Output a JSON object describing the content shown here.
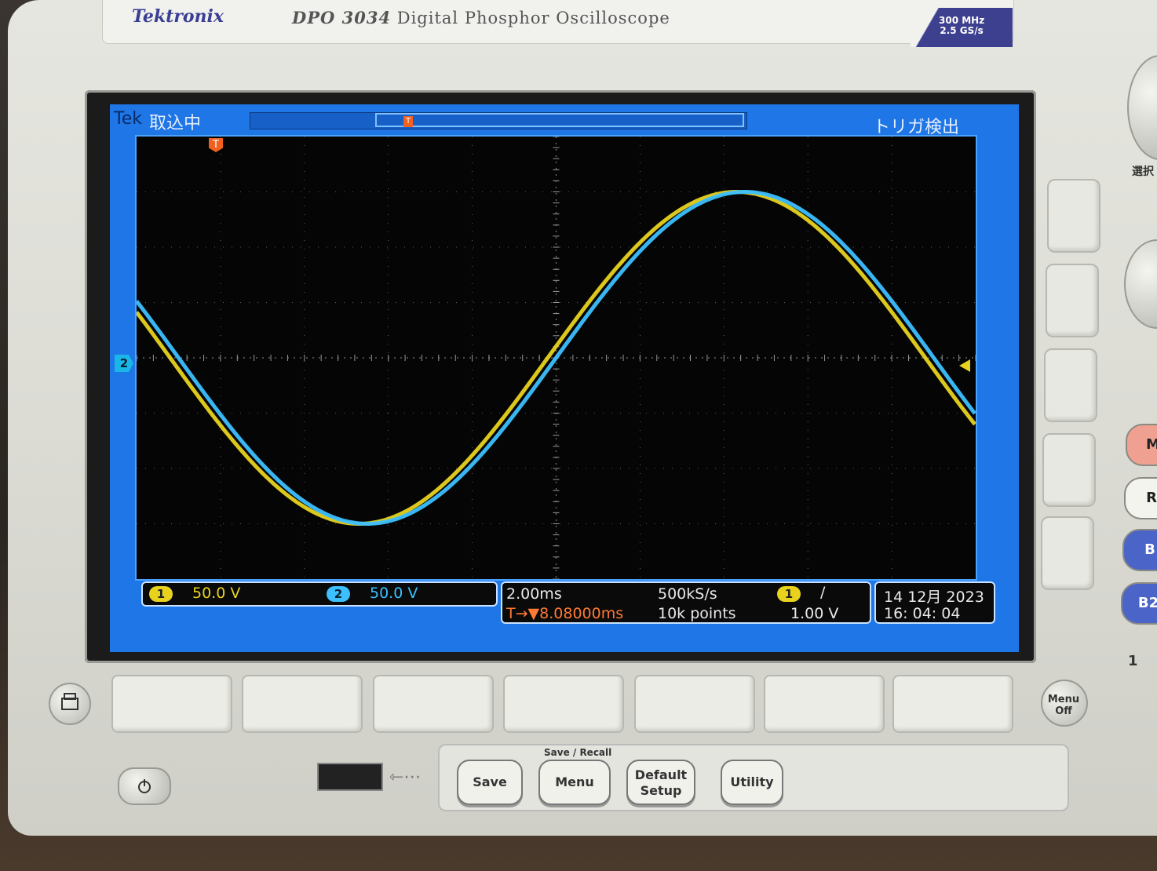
{
  "brand": {
    "logo": "Tektronix",
    "model": "DPO 3034",
    "description": "Digital Phosphor Oscilloscope",
    "spec_line1": "300 MHz",
    "spec_line2": "2.5 GS/s"
  },
  "screen": {
    "tek_label": "Tek",
    "acquisition_status": "取込中",
    "trigger_status": "トリガ検出",
    "trigger_marker": "T",
    "ch2_marker": "2",
    "channel1": {
      "number": "1",
      "scale": "50.0 V",
      "color": "#e8d21e"
    },
    "channel2": {
      "number": "2",
      "scale": "50.0 V",
      "color": "#3cc0ff"
    },
    "timebase": {
      "time_per_div": "2.00ms",
      "sample_rate": "500kS/s",
      "record_length": "10k points",
      "trigger_position": "T→▼8.08000ms"
    },
    "trigger": {
      "source": "1",
      "slope": "/",
      "level": "1.00 V"
    },
    "datetime": {
      "date": "14 12月 2023",
      "time": "16: 04: 04"
    }
  },
  "front_panel": {
    "side_label": "選択",
    "menu_off": "Menu Off",
    "save_recall_title": "Save / Recall",
    "save_label": "Save",
    "menu_label": "Menu",
    "default_setup_label": "Default Setup",
    "utility_label": "Utility",
    "side_buttons_right": [
      "M",
      "R",
      "B",
      "B2"
    ],
    "connector_label": "1"
  },
  "chart_data": {
    "type": "line",
    "xlabel": "",
    "ylabel": "",
    "x_divisions": 10,
    "y_divisions": 8,
    "grid": true,
    "series": [
      {
        "name": "1",
        "color": "#e8d21e",
        "amplitude_div": 3.0,
        "period_div": 9.0,
        "phase_offset_div": -0.1
      },
      {
        "name": "2",
        "color": "#3cc0ff",
        "amplitude_div": 3.0,
        "period_div": 9.0,
        "phase_offset_div": 0.0
      }
    ]
  }
}
